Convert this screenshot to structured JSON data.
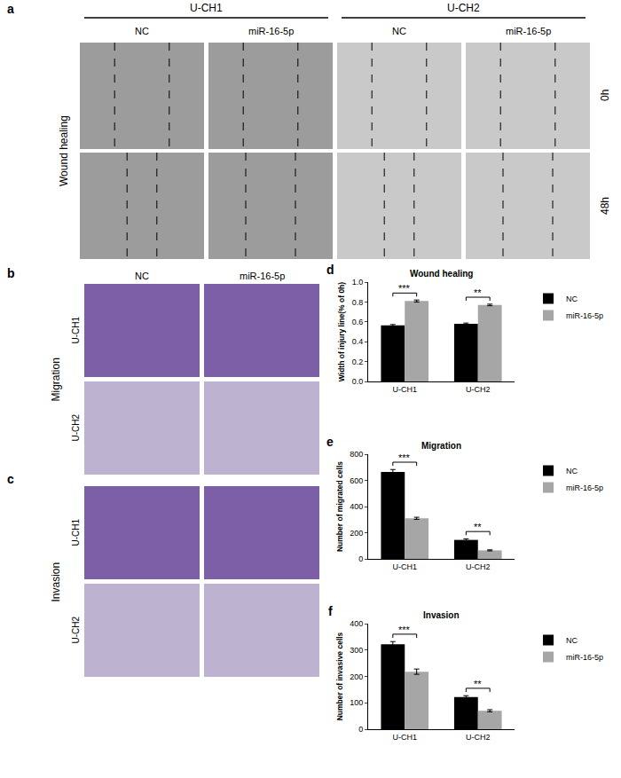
{
  "chart_data": [
    {
      "letter": "d",
      "type": "bar",
      "title": "Wound healing",
      "y_label": "Width of injury line(% of 0h)",
      "categories": [
        "U-CH1",
        "U-CH2"
      ],
      "series": [
        {
          "name": "NC",
          "color": "#000000",
          "values": [
            0.565,
            0.58
          ],
          "errors": [
            0.008,
            0.008
          ]
        },
        {
          "name": "miR-16-5p",
          "color": "#a6a6a6",
          "values": [
            0.81,
            0.77
          ],
          "errors": [
            0.01,
            0.008
          ]
        }
      ],
      "ylim": [
        0,
        1.0
      ],
      "yticks": [
        {
          "value": 0,
          "label": "0.0"
        },
        0.2,
        0.4,
        0.6,
        0.8,
        {
          "value": 1.0,
          "label": "1.0"
        }
      ],
      "grid": false,
      "legend": "right",
      "significance": [
        {
          "category": "U-CH1",
          "label": "***"
        },
        {
          "category": "U-CH2",
          "label": "**"
        }
      ]
    },
    {
      "letter": "e",
      "type": "bar",
      "title": "Migration",
      "y_label": "Number of migrated cells",
      "categories": [
        "U-CH1",
        "U-CH2"
      ],
      "series": [
        {
          "name": "NC",
          "color": "#000000",
          "values": [
            665,
            145
          ],
          "errors": [
            18,
            8
          ]
        },
        {
          "name": "miR-16-5p",
          "color": "#a6a6a6",
          "values": [
            310,
            65
          ],
          "errors": [
            8,
            4
          ]
        }
      ],
      "ylim": [
        0,
        800
      ],
      "yticks": [
        0,
        200,
        400,
        600,
        800
      ],
      "grid": false,
      "legend": "right",
      "significance": [
        {
          "category": "U-CH1",
          "label": "***"
        },
        {
          "category": "U-CH2",
          "label": "**"
        }
      ]
    },
    {
      "letter": "f",
      "type": "bar",
      "title": "Invasion",
      "y_label": "Number of invasive cells",
      "categories": [
        "U-CH1",
        "U-CH2"
      ],
      "series": [
        {
          "name": "NC",
          "color": "#000000",
          "values": [
            322,
            122
          ],
          "errors": [
            10,
            5
          ]
        },
        {
          "name": "miR-16-5p",
          "color": "#a6a6a6",
          "values": [
            218,
            70
          ],
          "errors": [
            10,
            4
          ]
        }
      ],
      "ylim": [
        0,
        400
      ],
      "yticks": [
        0,
        100,
        200,
        300,
        400
      ],
      "grid": false,
      "legend": "right",
      "significance": [
        {
          "category": "U-CH1",
          "label": "***"
        },
        {
          "category": "U-CH2",
          "label": "**"
        }
      ]
    }
  ],
  "image_panels": {
    "a": {
      "letter": "a",
      "row_title": "Wound healing",
      "groups": [
        {
          "name": "U-CH1",
          "columns": [
            "NC",
            "miR-16-5p"
          ]
        },
        {
          "name": "U-CH2",
          "columns": [
            "NC",
            "miR-16-5p"
          ]
        }
      ],
      "rows": [
        "0h",
        "48h"
      ]
    },
    "b": {
      "letter": "b",
      "title": "Migration",
      "columns": [
        "NC",
        "miR-16-5p"
      ],
      "rows": [
        "U-CH1",
        "U-CH2"
      ]
    },
    "c": {
      "letter": "c",
      "title": "Invasion",
      "rows": [
        "U-CH1",
        "U-CH2"
      ]
    }
  }
}
